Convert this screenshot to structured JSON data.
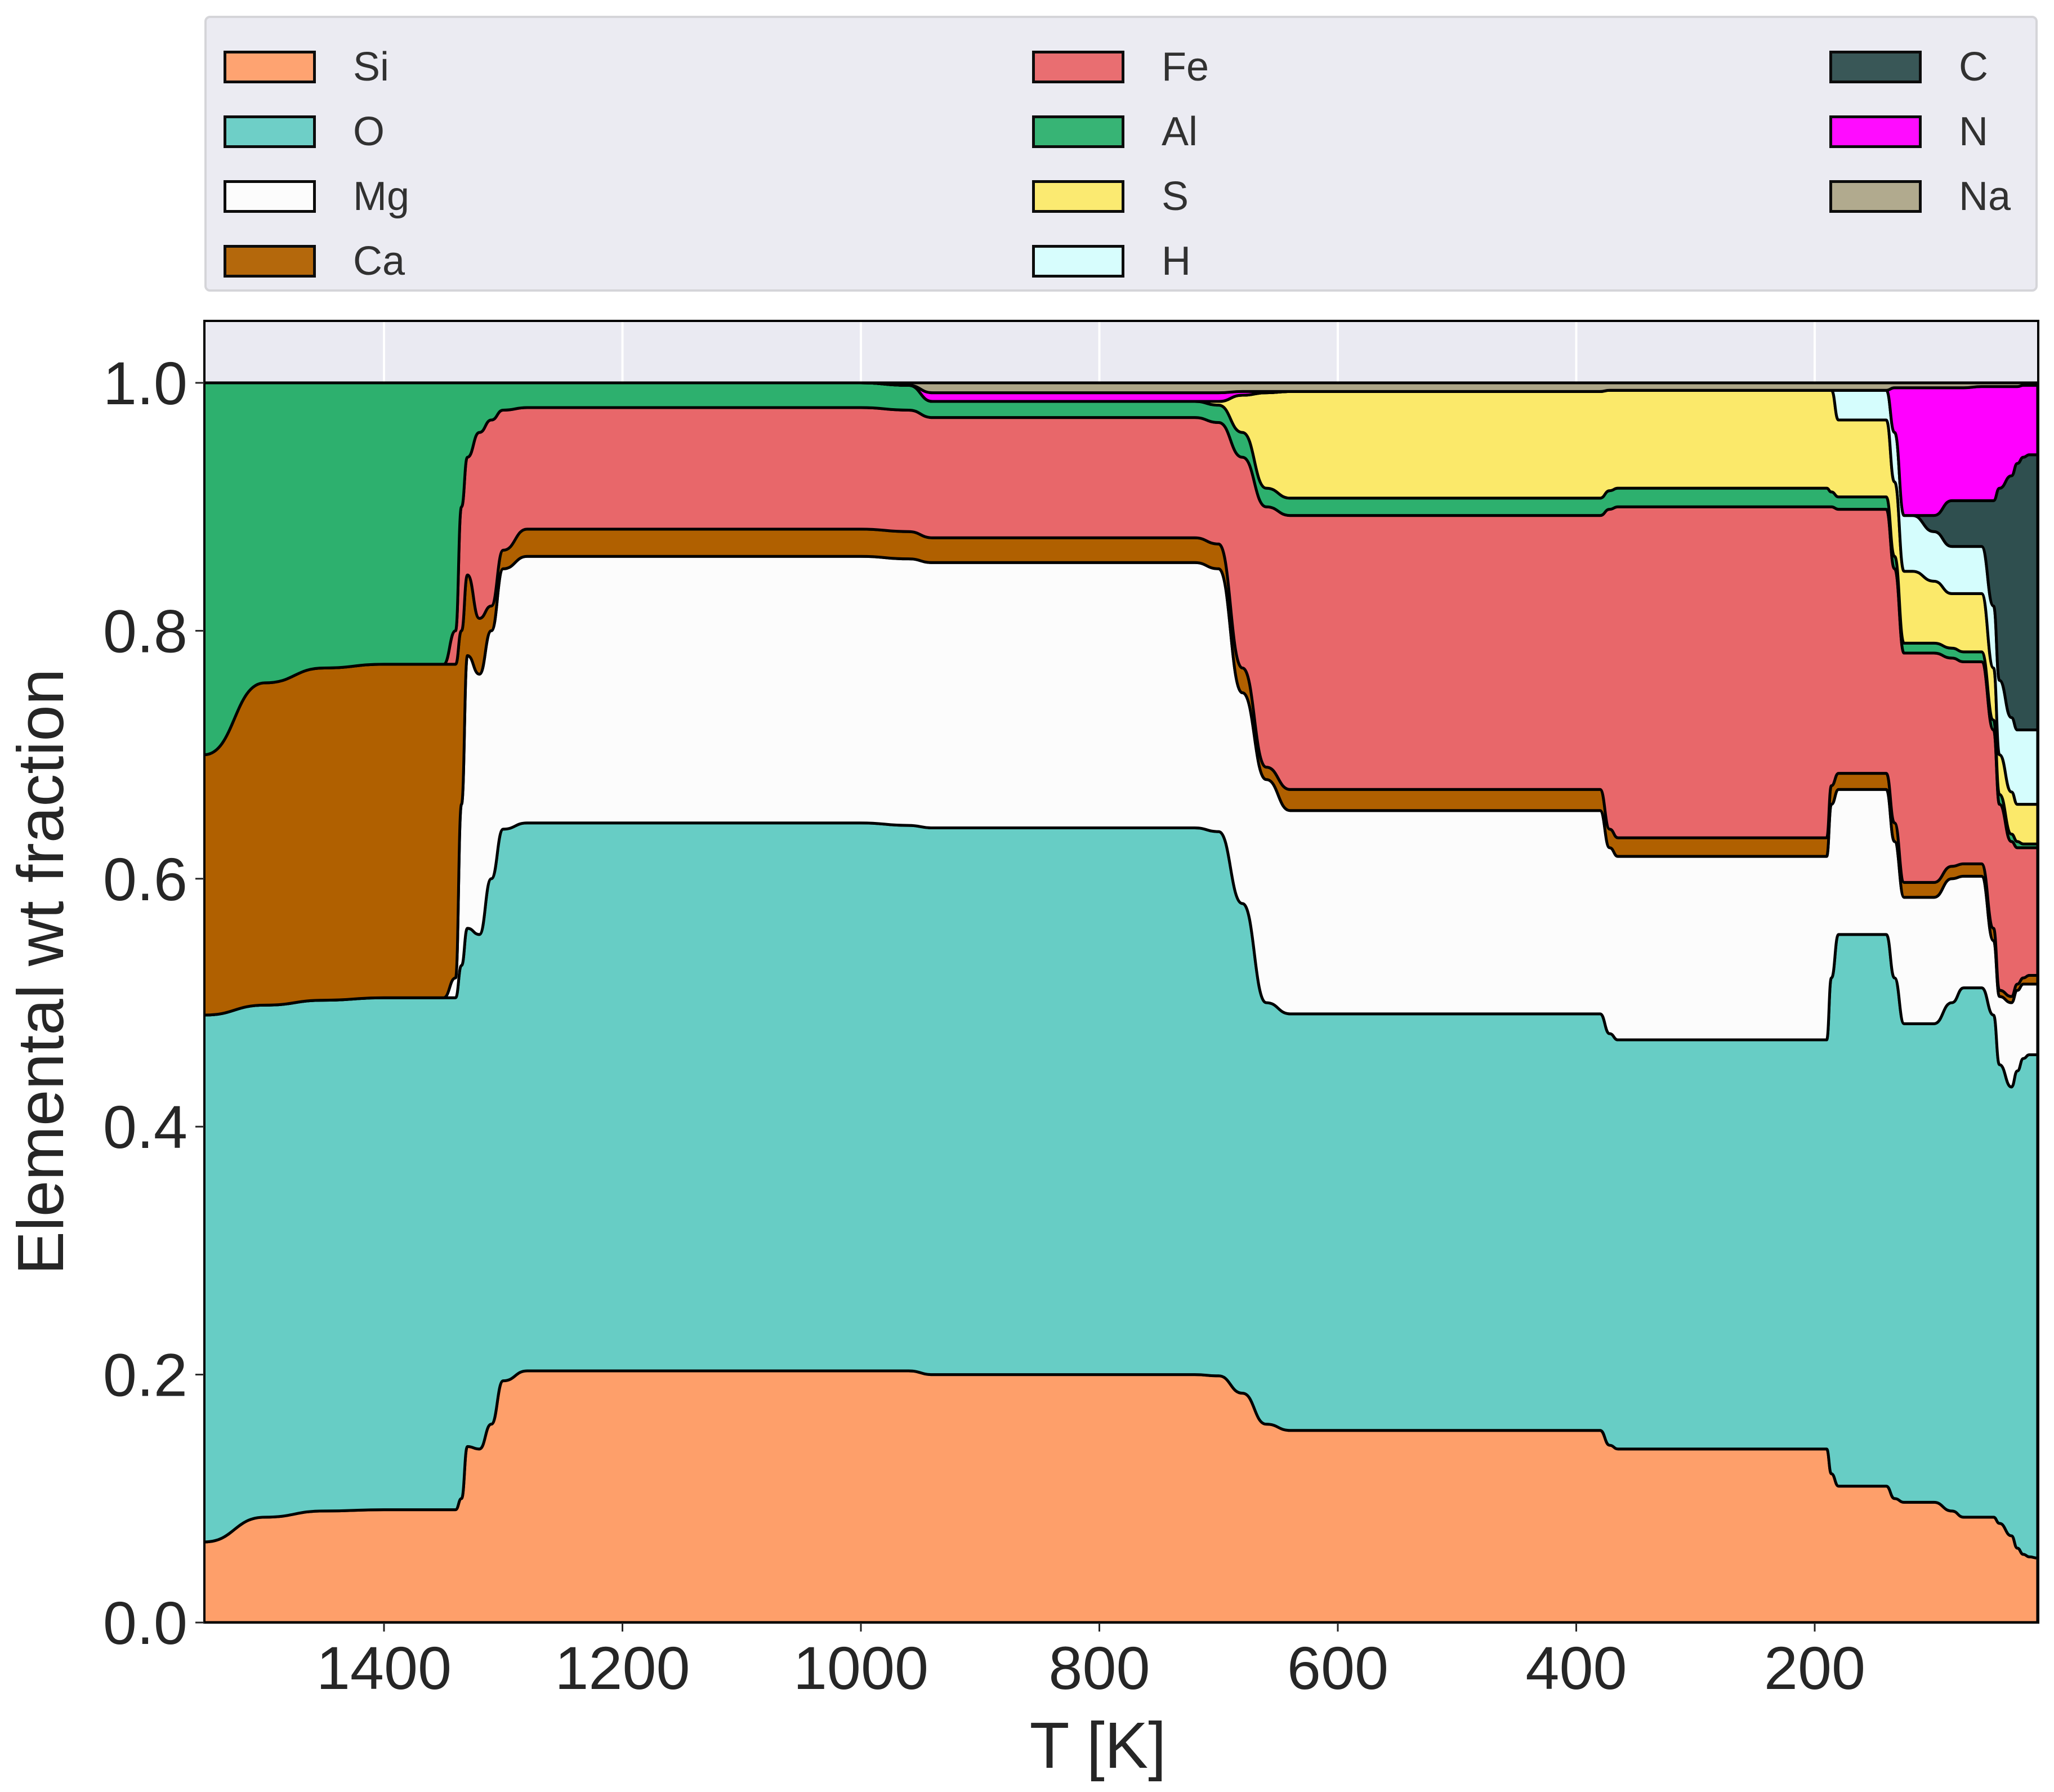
{
  "chart_data": {
    "type": "area",
    "stacked": true,
    "title": "",
    "xlabel": "T [K]",
    "ylabel": "Elemental wt fraction",
    "xlim": [
      1551,
      13
    ],
    "x_inverted": true,
    "ylim": [
      0.0,
      1.05
    ],
    "grid": true,
    "legend_position": "top (outside, 3 columns)",
    "x_ticks": [
      1400,
      1200,
      1000,
      800,
      600,
      400,
      200
    ],
    "x_tick_labels": [
      "1400",
      "1200",
      "1000",
      "800",
      "600",
      "400",
      "200"
    ],
    "y_ticks": [
      0.0,
      0.2,
      0.4,
      0.6,
      0.8,
      1.0
    ],
    "y_tick_labels": [
      "0.0",
      "0.2",
      "0.4",
      "0.6",
      "0.8",
      "1.0"
    ],
    "series_order": [
      "Si",
      "O",
      "Mg",
      "Ca",
      "Fe",
      "Al",
      "S",
      "H",
      "C",
      "N",
      "Na"
    ],
    "colors": {
      "Si": "#fe9f6a",
      "O": "#67cdc5",
      "Mg": "#fcfcfc",
      "Ca": "#b06000",
      "Fe": "#e8676a",
      "Al": "#2db06e",
      "S": "#fbe96a",
      "H": "#d5fdfd",
      "C": "#2f4f4f",
      "N": "#ff00ff",
      "Na": "#ada688"
    },
    "T": [
      1551,
      1500,
      1450,
      1400,
      1350,
      1340,
      1335,
      1330,
      1320,
      1310,
      1300,
      1280,
      1250,
      1000,
      960,
      940,
      720,
      700,
      680,
      660,
      640,
      620,
      380,
      372,
      365,
      190,
      186,
      180,
      140,
      133,
      125,
      118,
      100,
      85,
      75,
      60,
      50,
      45,
      35,
      30,
      25,
      20,
      13
    ],
    "cumulative_tops": {
      "Si": [
        0.065,
        0.085,
        0.09,
        0.091,
        0.091,
        0.091,
        0.1,
        0.142,
        0.14,
        0.16,
        0.195,
        0.203,
        0.203,
        0.203,
        0.203,
        0.2,
        0.2,
        0.199,
        0.185,
        0.16,
        0.155,
        0.155,
        0.155,
        0.143,
        0.14,
        0.14,
        0.12,
        0.11,
        0.11,
        0.1,
        0.097,
        0.097,
        0.097,
        0.09,
        0.085,
        0.085,
        0.085,
        0.08,
        0.07,
        0.06,
        0.055,
        0.053,
        0.052
      ],
      "O": [
        0.49,
        0.498,
        0.502,
        0.504,
        0.504,
        0.504,
        0.53,
        0.56,
        0.555,
        0.6,
        0.64,
        0.645,
        0.645,
        0.645,
        0.643,
        0.641,
        0.641,
        0.638,
        0.58,
        0.5,
        0.491,
        0.491,
        0.491,
        0.475,
        0.47,
        0.47,
        0.52,
        0.555,
        0.555,
        0.52,
        0.483,
        0.483,
        0.483,
        0.5,
        0.512,
        0.512,
        0.49,
        0.45,
        0.432,
        0.445,
        0.455,
        0.458,
        0.458
      ],
      "Mg": [
        0.49,
        0.498,
        0.502,
        0.504,
        0.504,
        0.52,
        0.66,
        0.78,
        0.765,
        0.8,
        0.85,
        0.86,
        0.86,
        0.86,
        0.858,
        0.855,
        0.855,
        0.85,
        0.75,
        0.68,
        0.655,
        0.655,
        0.655,
        0.625,
        0.618,
        0.618,
        0.66,
        0.672,
        0.672,
        0.63,
        0.585,
        0.585,
        0.585,
        0.6,
        0.602,
        0.602,
        0.55,
        0.505,
        0.5,
        0.51,
        0.515,
        0.515,
        0.515
      ],
      "Ca": [
        0.7,
        0.758,
        0.77,
        0.773,
        0.773,
        0.773,
        0.8,
        0.845,
        0.81,
        0.82,
        0.865,
        0.882,
        0.882,
        0.882,
        0.88,
        0.875,
        0.875,
        0.87,
        0.77,
        0.69,
        0.672,
        0.672,
        0.672,
        0.64,
        0.633,
        0.633,
        0.675,
        0.685,
        0.685,
        0.645,
        0.597,
        0.597,
        0.597,
        0.61,
        0.612,
        0.612,
        0.56,
        0.51,
        0.505,
        0.515,
        0.52,
        0.522,
        0.522
      ],
      "Fe": [
        0.7,
        0.758,
        0.77,
        0.773,
        0.773,
        0.8,
        0.9,
        0.94,
        0.96,
        0.97,
        0.978,
        0.98,
        0.98,
        0.98,
        0.978,
        0.972,
        0.972,
        0.968,
        0.94,
        0.9,
        0.893,
        0.893,
        0.893,
        0.898,
        0.9,
        0.9,
        0.9,
        0.898,
        0.898,
        0.85,
        0.782,
        0.782,
        0.782,
        0.778,
        0.775,
        0.775,
        0.72,
        0.66,
        0.63,
        0.625,
        0.625,
        0.625,
        0.625
      ],
      "Al": [
        1.0,
        1.0,
        1.0,
        1.0,
        1.0,
        1.0,
        1.0,
        1.0,
        1.0,
        1.0,
        1.0,
        1.0,
        1.0,
        1.0,
        0.998,
        0.985,
        0.985,
        0.982,
        0.96,
        0.915,
        0.907,
        0.907,
        0.907,
        0.913,
        0.915,
        0.915,
        0.912,
        0.908,
        0.908,
        0.86,
        0.79,
        0.79,
        0.79,
        0.786,
        0.783,
        0.783,
        0.728,
        0.668,
        0.636,
        0.63,
        0.628,
        0.628,
        0.628
      ],
      "S": [
        1.0,
        1.0,
        1.0,
        1.0,
        1.0,
        1.0,
        1.0,
        1.0,
        1.0,
        1.0,
        1.0,
        1.0,
        1.0,
        1.0,
        0.998,
        0.985,
        0.985,
        0.985,
        0.99,
        0.992,
        0.993,
        0.993,
        0.993,
        0.994,
        0.994,
        0.994,
        0.994,
        0.97,
        0.97,
        0.92,
        0.848,
        0.848,
        0.84,
        0.83,
        0.83,
        0.83,
        0.77,
        0.7,
        0.67,
        0.66,
        0.66,
        0.66,
        0.66
      ],
      "H": [
        1.0,
        1.0,
        1.0,
        1.0,
        1.0,
        1.0,
        1.0,
        1.0,
        1.0,
        1.0,
        1.0,
        1.0,
        1.0,
        1.0,
        0.998,
        0.985,
        0.985,
        0.985,
        0.99,
        0.992,
        0.993,
        0.993,
        0.993,
        0.994,
        0.994,
        0.994,
        0.994,
        0.994,
        0.994,
        0.96,
        0.893,
        0.893,
        0.88,
        0.868,
        0.868,
        0.868,
        0.82,
        0.76,
        0.73,
        0.72,
        0.72,
        0.72,
        0.72
      ],
      "C": [
        1.0,
        1.0,
        1.0,
        1.0,
        1.0,
        1.0,
        1.0,
        1.0,
        1.0,
        1.0,
        1.0,
        1.0,
        1.0,
        1.0,
        0.998,
        0.985,
        0.985,
        0.985,
        0.99,
        0.992,
        0.993,
        0.993,
        0.993,
        0.994,
        0.994,
        0.994,
        0.994,
        0.994,
        0.994,
        0.96,
        0.893,
        0.893,
        0.893,
        0.905,
        0.905,
        0.905,
        0.905,
        0.915,
        0.925,
        0.935,
        0.94,
        0.942,
        0.942
      ],
      "N": [
        1.0,
        1.0,
        1.0,
        1.0,
        1.0,
        1.0,
        1.0,
        1.0,
        1.0,
        1.0,
        1.0,
        1.0,
        1.0,
        1.0,
        0.998,
        0.992,
        0.992,
        0.992,
        0.993,
        0.993,
        0.993,
        0.993,
        0.993,
        0.994,
        0.994,
        0.994,
        0.994,
        0.994,
        0.994,
        0.996,
        0.996,
        0.996,
        0.996,
        0.996,
        0.996,
        0.997,
        0.997,
        0.997,
        0.997,
        0.997,
        0.998,
        0.998,
        0.998
      ],
      "Na": [
        1.0,
        1.0,
        1.0,
        1.0,
        1.0,
        1.0,
        1.0,
        1.0,
        1.0,
        1.0,
        1.0,
        1.0,
        1.0,
        1.0,
        1.0,
        1.0,
        1.0,
        1.0,
        1.0,
        1.0,
        1.0,
        1.0,
        1.0,
        1.0,
        1.0,
        1.0,
        1.0,
        1.0,
        1.0,
        1.0,
        1.0,
        1.0,
        1.0,
        1.0,
        1.0,
        1.0,
        1.0,
        1.0,
        1.0,
        1.0,
        1.0,
        1.0,
        1.0
      ]
    },
    "approx_fractions_at_T": {
      "1500K": {
        "Si": 0.085,
        "O": 0.413,
        "Mg": 0.0,
        "Ca": 0.26,
        "Fe": 0.0,
        "Al": 0.242
      },
      "1000K": {
        "Si": 0.203,
        "O": 0.442,
        "Mg": 0.215,
        "Ca": 0.022,
        "Fe": 0.098,
        "Al": 0.02
      },
      "500K": {
        "Si": 0.155,
        "O": 0.336,
        "Mg": 0.164,
        "Ca": 0.017,
        "Fe": 0.221,
        "Al": 0.014,
        "S": 0.086,
        "Na": 0.007
      },
      "250K": {
        "Si": 0.14,
        "O": 0.33,
        "Mg": 0.148,
        "Ca": 0.015,
        "Fe": 0.267,
        "Al": 0.015,
        "S": 0.079,
        "Na": 0.006
      },
      "20K": {
        "Si": 0.053,
        "O": 0.405,
        "Mg": 0.057,
        "Ca": 0.007,
        "Fe": 0.103,
        "Al": 0.003,
        "S": 0.032,
        "H": 0.06,
        "C": 0.222,
        "N": 0.056,
        "Na": 0.002
      }
    }
  },
  "legend": {
    "items": [
      {
        "label": "Si",
        "color": "#fe9f6a"
      },
      {
        "label": "O",
        "color": "#67cdc5"
      },
      {
        "label": "Mg",
        "color": "#fcfcfc"
      },
      {
        "label": "Ca",
        "color": "#b06000"
      },
      {
        "label": "Fe",
        "color": "#e8676a"
      },
      {
        "label": "Al",
        "color": "#2db06e"
      },
      {
        "label": "S",
        "color": "#fbe96a"
      },
      {
        "label": "H",
        "color": "#d5fdfd"
      },
      {
        "label": "C",
        "color": "#2f4f4f"
      },
      {
        "label": "N",
        "color": "#ff00ff"
      },
      {
        "label": "Na",
        "color": "#ada688"
      }
    ]
  },
  "axes": {
    "xlabel": "T [K]",
    "ylabel": "Elemental wt fraction",
    "background": "#eaeaf2",
    "grid_color": "#ffffff"
  }
}
